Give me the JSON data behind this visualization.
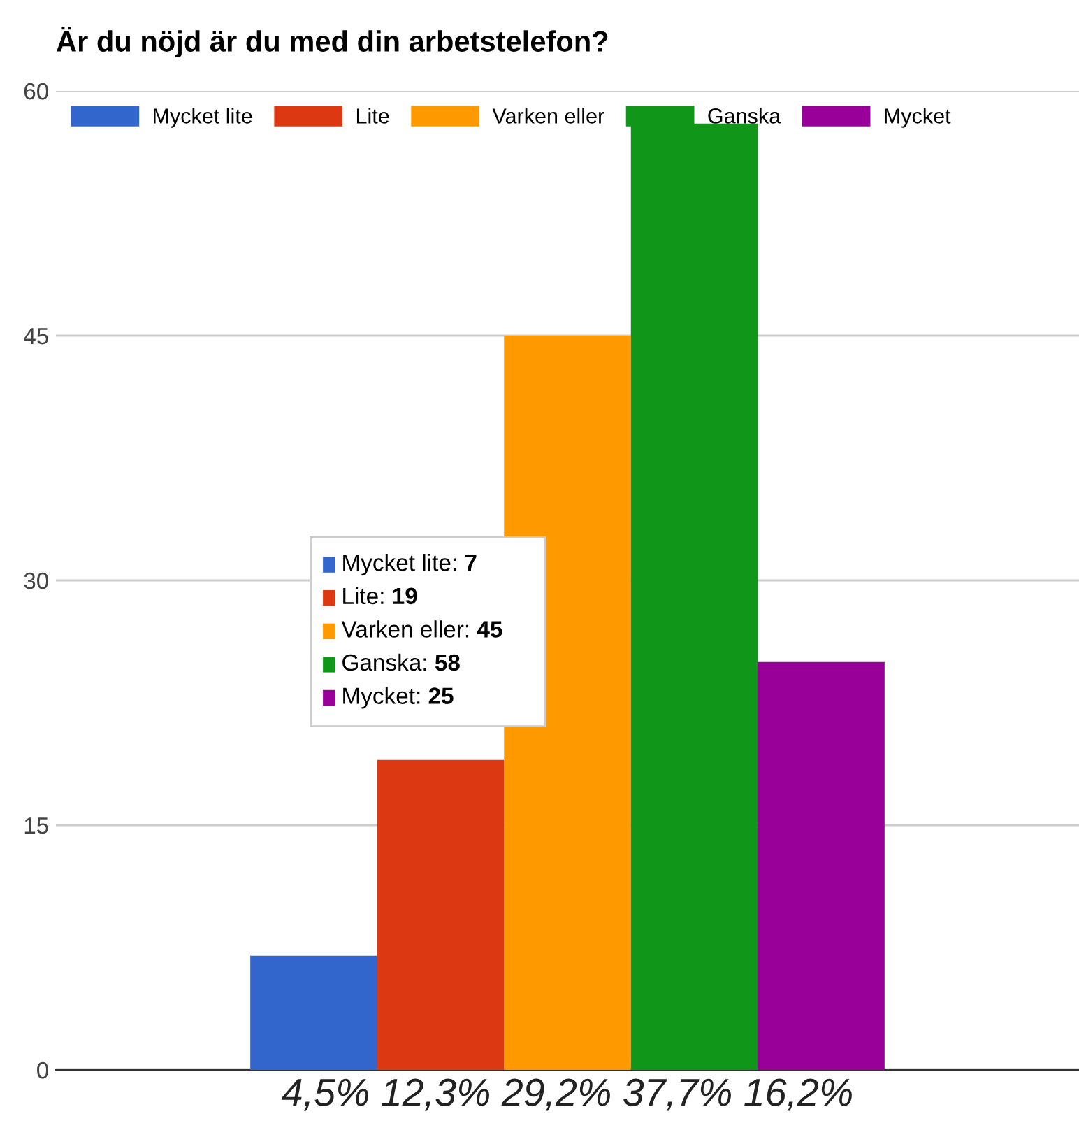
{
  "chart_data": {
    "type": "bar",
    "title": "Är du nöjd är du med din arbetstelefon?",
    "categories": [
      "4,5% 12,3% 29,2% 37,7% 16,2%"
    ],
    "series": [
      {
        "name": "Mycket lite",
        "color": "#3366cc",
        "values": [
          7
        ]
      },
      {
        "name": "Lite",
        "color": "#dc3912",
        "values": [
          19
        ]
      },
      {
        "name": "Varken eller",
        "color": "#ff9900",
        "values": [
          45
        ]
      },
      {
        "name": "Ganska",
        "color": "#109618",
        "values": [
          58
        ]
      },
      {
        "name": "Mycket",
        "color": "#990099",
        "values": [
          25
        ]
      }
    ],
    "ylim": [
      0,
      60
    ],
    "yticks": [
      0,
      15,
      30,
      45,
      60
    ],
    "grid": "y",
    "legend": "top",
    "annotations": [
      "Mycket lite: 7",
      "Lite: 19",
      "Varken eller: 45",
      "Ganska: 58",
      "Mycket: 25"
    ]
  }
}
